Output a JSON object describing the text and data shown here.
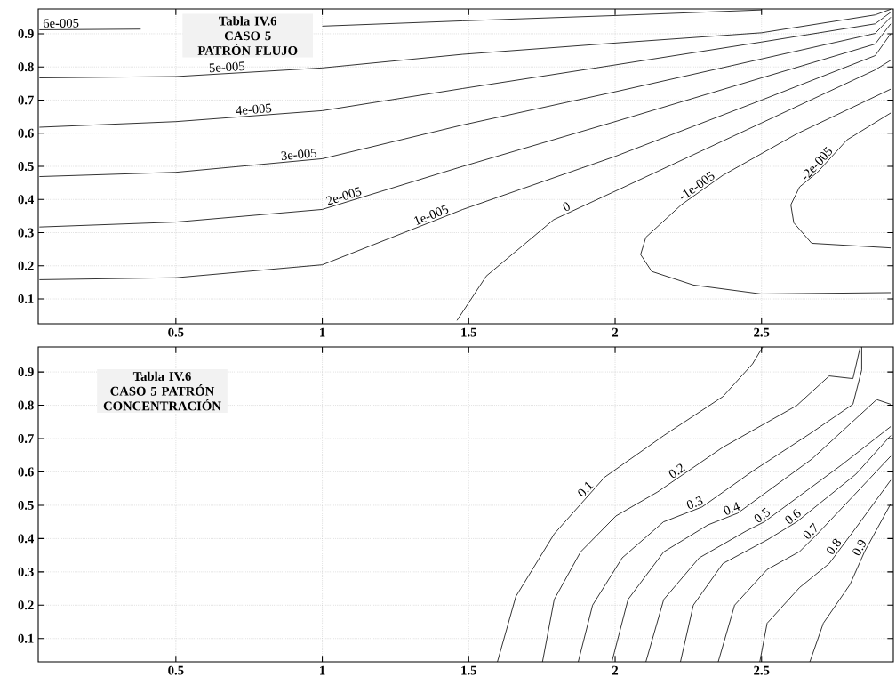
{
  "chart_data": [
    {
      "type": "line",
      "title": "Tabla IV.6",
      "subtitle": "CASO 5 PATRÓN FLUJO",
      "xlim": [
        0.03,
        2.95
      ],
      "ylim": [
        0.025,
        0.975
      ],
      "xticks": [
        0.5,
        1,
        1.5,
        2,
        2.5
      ],
      "yticks": [
        0.1,
        0.2,
        0.3,
        0.4,
        0.5,
        0.6,
        0.7,
        0.8,
        0.9
      ],
      "grid": true,
      "marker": "none",
      "line_style": "solid",
      "series": [
        {
          "name": "6e-005",
          "color": "#000000",
          "x": [
            0.034,
            0.38,
            0.5,
            1.0,
            1.48,
            2.0,
            2.5
          ],
          "values": [
            0.912,
            0.914,
            null,
            0.923,
            0.939,
            0.955,
            0.972
          ]
        },
        {
          "name": "5e-005",
          "color": "#000000",
          "x": [
            0.034,
            0.5,
            1.0,
            1.48,
            2.0,
            2.5,
            2.888,
            2.941
          ],
          "values": [
            0.767,
            0.771,
            0.797,
            0.838,
            0.872,
            0.903,
            0.957,
            0.974
          ]
        },
        {
          "name": "4e-005",
          "color": "#000000",
          "x": [
            0.034,
            0.5,
            1.0,
            1.48,
            2.0,
            2.5,
            2.888,
            2.941
          ],
          "values": [
            0.618,
            0.635,
            0.668,
            0.735,
            0.806,
            0.875,
            0.93,
            0.965
          ]
        },
        {
          "name": "3e-005",
          "color": "#000000",
          "x": [
            0.034,
            0.5,
            1.0,
            1.48,
            2.0,
            2.5,
            2.888,
            2.941
          ],
          "values": [
            0.469,
            0.482,
            0.523,
            0.625,
            0.725,
            0.824,
            0.901,
            0.95
          ]
        },
        {
          "name": "2e-005",
          "color": "#000000",
          "x": [
            0.034,
            0.5,
            1.0,
            1.48,
            2.0,
            2.5,
            2.888,
            2.941
          ],
          "values": [
            0.317,
            0.332,
            0.37,
            0.5,
            0.635,
            0.767,
            0.869,
            0.93
          ]
        },
        {
          "name": "1e-005",
          "color": "#000000",
          "x": [
            0.034,
            0.5,
            1.0,
            1.48,
            2.0,
            2.5,
            2.888,
            2.941
          ],
          "values": [
            0.158,
            0.164,
            0.203,
            0.37,
            0.53,
            0.7,
            0.834,
            0.9
          ]
        },
        {
          "name": "0",
          "color": "#000000",
          "x": [
            1.46,
            1.56,
            1.79,
            2.0,
            2.5,
            2.888,
            2.941
          ],
          "values": [
            0.035,
            0.169,
            0.339,
            0.425,
            0.631,
            0.791,
            0.82
          ]
        },
        {
          "name": "-1e-005",
          "color": "#000000",
          "x": [
            2.941,
            2.499,
            2.267,
            2.125,
            2.087,
            2.105,
            2.226,
            2.368,
            2.62,
            2.941
          ],
          "values": [
            0.119,
            0.115,
            0.142,
            0.183,
            0.234,
            0.286,
            0.384,
            0.473,
            0.598,
            0.733
          ]
        },
        {
          "name": "-2e-005",
          "color": "#000000",
          "x": [
            2.941,
            2.671,
            2.61,
            2.6,
            2.63,
            2.691,
            2.792,
            2.941
          ],
          "values": [
            0.254,
            0.268,
            0.33,
            0.384,
            0.438,
            0.482,
            0.58,
            0.661
          ]
        }
      ]
    },
    {
      "type": "line",
      "title": "Tabla IV.6",
      "subtitle": "CASO 5 PATRÓN CONCENTRACIÓN",
      "xlim": [
        0.03,
        2.95
      ],
      "ylim": [
        0.03,
        0.975
      ],
      "xticks": [
        0.5,
        1,
        1.5,
        2,
        2.5
      ],
      "yticks": [
        0.1,
        0.2,
        0.3,
        0.4,
        0.5,
        0.6,
        0.7,
        0.8,
        0.9
      ],
      "grid": true,
      "marker": "none",
      "line_style": "solid",
      "series": [
        {
          "name": "0.1",
          "color": "#000000",
          "x": [
            1.598,
            1.661,
            1.792,
            1.964,
            2.166,
            2.368,
            2.469,
            2.504
          ],
          "values": [
            0.03,
            0.226,
            0.414,
            0.584,
            0.709,
            0.826,
            0.924,
            0.975
          ]
        },
        {
          "name": "0.2",
          "color": "#000000",
          "x": [
            1.752,
            1.792,
            1.882,
            2.003,
            2.145,
            2.368,
            2.62,
            2.731,
            2.812,
            2.837
          ],
          "values": [
            0.03,
            0.217,
            0.36,
            0.468,
            0.54,
            0.674,
            0.799,
            0.888,
            0.88,
            0.975
          ]
        },
        {
          "name": "0.3",
          "color": "#000000",
          "x": [
            1.874,
            1.923,
            2.024,
            2.165,
            2.297,
            2.469,
            2.671,
            2.812,
            2.842,
            2.842
          ],
          "values": [
            0.03,
            0.2,
            0.342,
            0.45,
            0.495,
            0.602,
            0.718,
            0.803,
            0.906,
            0.975
          ]
        },
        {
          "name": "0.4",
          "color": "#000000",
          "x": [
            1.989,
            2.044,
            2.166,
            2.317,
            2.418,
            2.671,
            2.893,
            2.941
          ],
          "values": [
            0.03,
            0.217,
            0.36,
            0.441,
            0.476,
            0.638,
            0.817,
            0.803
          ]
        },
        {
          "name": "0.5",
          "color": "#000000",
          "x": [
            2.105,
            2.166,
            2.287,
            2.448,
            2.509,
            2.772,
            2.941
          ],
          "values": [
            0.03,
            0.217,
            0.342,
            0.423,
            0.45,
            0.62,
            0.736
          ]
        },
        {
          "name": "0.6",
          "color": "#000000",
          "x": [
            2.223,
            2.267,
            2.368,
            2.519,
            2.62,
            2.822,
            2.941
          ],
          "values": [
            0.03,
            0.2,
            0.325,
            0.396,
            0.45,
            0.593,
            0.709
          ]
        },
        {
          "name": "0.7",
          "color": "#000000",
          "x": [
            2.352,
            2.408,
            2.519,
            2.63,
            2.691,
            2.941
          ],
          "values": [
            0.03,
            0.2,
            0.307,
            0.361,
            0.414,
            0.647
          ]
        },
        {
          "name": "0.8",
          "color": "#000000",
          "x": [
            2.494,
            2.519,
            2.63,
            2.731,
            2.822,
            2.941
          ],
          "values": [
            0.03,
            0.146,
            0.253,
            0.325,
            0.432,
            0.575
          ]
        },
        {
          "name": "0.9",
          "color": "#000000",
          "x": [
            2.665,
            2.711,
            2.802,
            2.852,
            2.941
          ],
          "values": [
            0.03,
            0.146,
            0.262,
            0.361,
            0.504
          ]
        }
      ]
    }
  ]
}
